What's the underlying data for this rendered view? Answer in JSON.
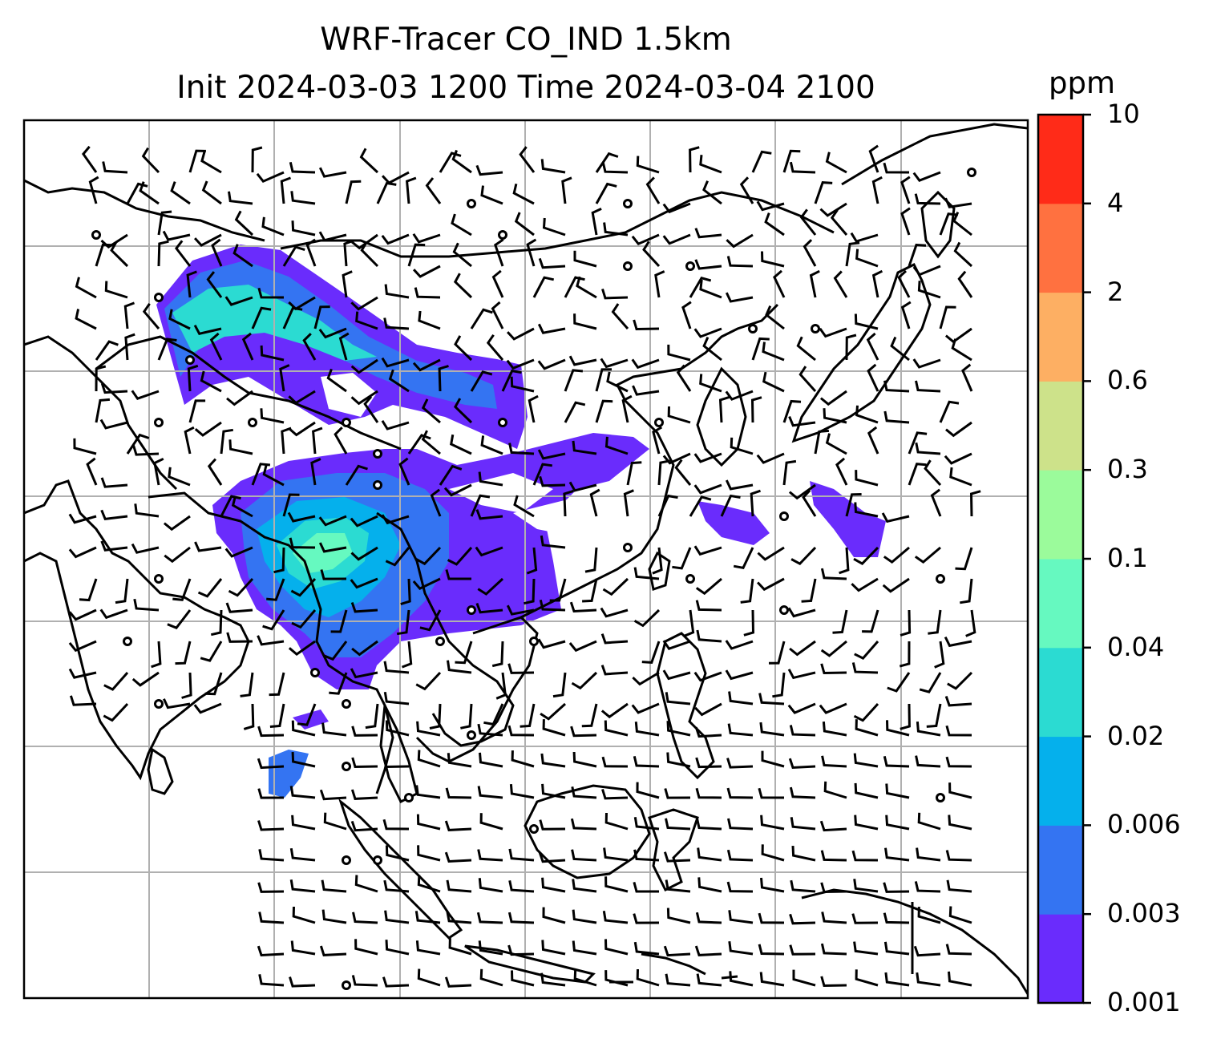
{
  "title": {
    "line1": "WRF-Tracer CO_IND 1.5km",
    "line2": "Init 2024-03-03 1200 Time 2024-03-04 2100"
  },
  "colorbar": {
    "unit": "ppm",
    "levels": [
      "0.001",
      "0.003",
      "0.006",
      "0.02",
      "0.04",
      "0.1",
      "0.3",
      "0.6",
      "2",
      "4",
      "10"
    ],
    "colors": [
      "#6a2cfc",
      "#3474f2",
      "#05b0ec",
      "#2bdbd2",
      "#66f9c0",
      "#9bfb9b",
      "#cde28a",
      "#fdaf63",
      "#ff7140",
      "#ff2b18"
    ]
  },
  "map": {
    "gridlines": true,
    "wind_barbs": true,
    "coastlines": true,
    "plume_colors": {
      "low": "#6a2cfc",
      "mid": "#3474f2",
      "high": "#2bdbd2",
      "peak": "#66f9c0"
    }
  }
}
